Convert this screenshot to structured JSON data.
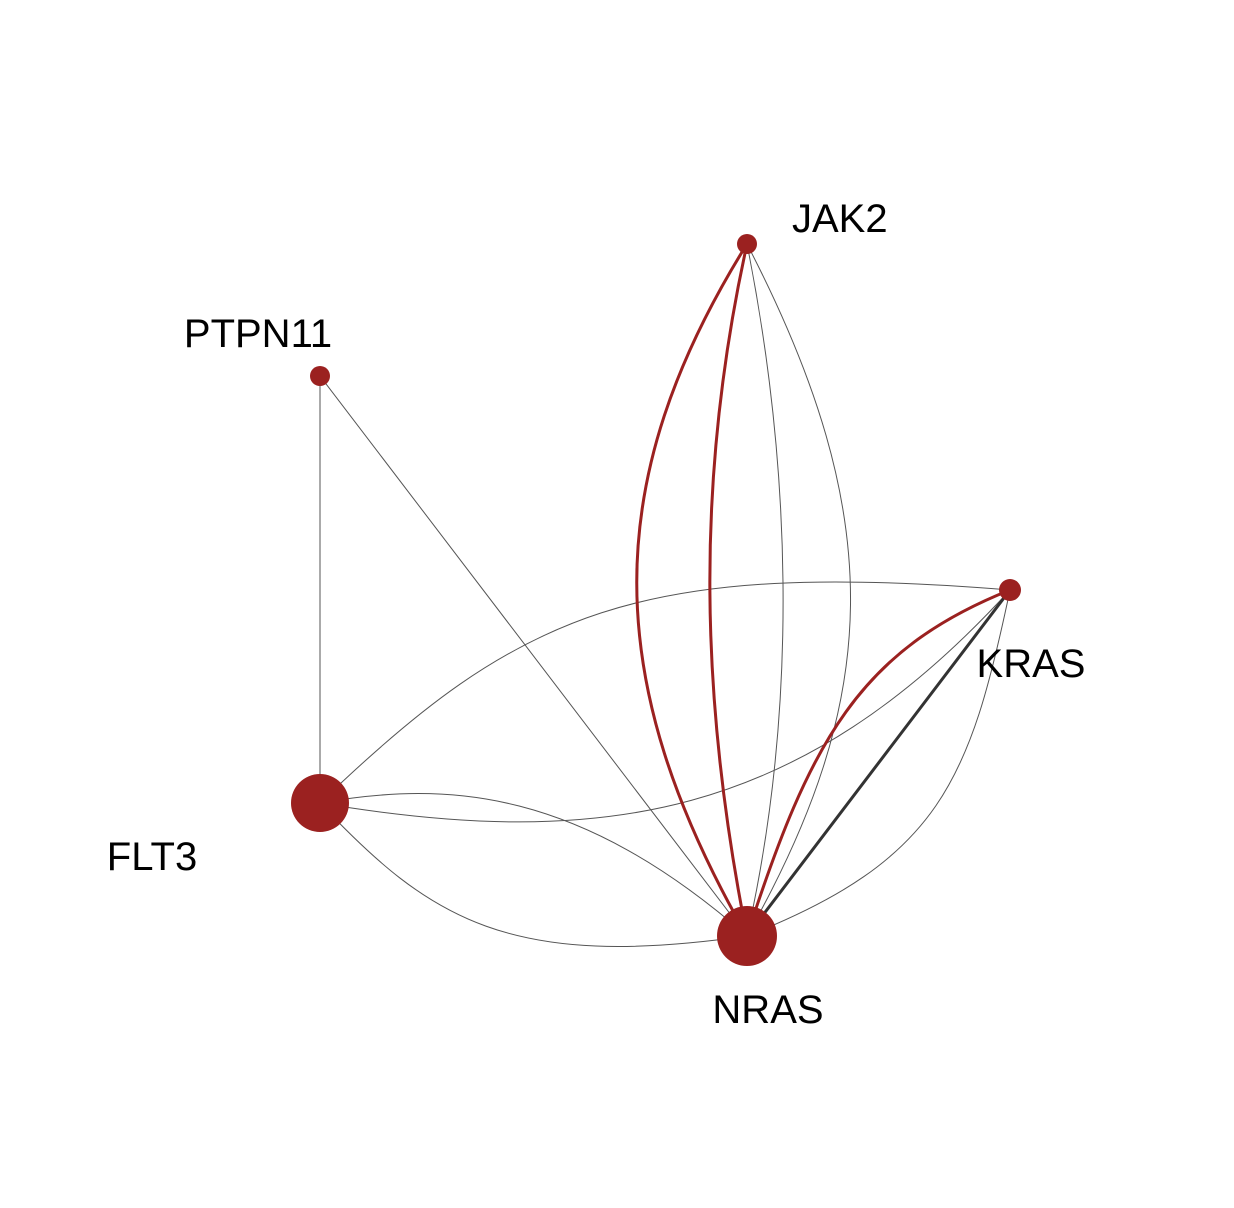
{
  "diagram": {
    "type": "network-graph",
    "colors": {
      "node": "#9b2120",
      "edge_highlight": "#9b2120",
      "edge_thin": "#555555",
      "edge_strong": "#333333",
      "label": "#000000"
    },
    "nodes": [
      {
        "id": "JAK2",
        "label": "JAK2",
        "size": "small"
      },
      {
        "id": "PTPN11",
        "label": "PTPN11",
        "size": "small"
      },
      {
        "id": "KRAS",
        "label": "KRAS",
        "size": "small"
      },
      {
        "id": "FLT3",
        "label": "FLT3",
        "size": "large"
      },
      {
        "id": "NRAS",
        "label": "NRAS",
        "size": "large"
      }
    ],
    "edges": [
      {
        "source": "JAK2",
        "target": "NRAS",
        "style": "highlight"
      },
      {
        "source": "JAK2",
        "target": "NRAS",
        "style": "highlight"
      },
      {
        "source": "JAK2",
        "target": "NRAS",
        "style": "thin"
      },
      {
        "source": "JAK2",
        "target": "NRAS",
        "style": "thin"
      },
      {
        "source": "PTPN11",
        "target": "FLT3",
        "style": "thin"
      },
      {
        "source": "PTPN11",
        "target": "NRAS",
        "style": "thin"
      },
      {
        "source": "KRAS",
        "target": "NRAS",
        "style": "highlight"
      },
      {
        "source": "KRAS",
        "target": "NRAS",
        "style": "strong"
      },
      {
        "source": "KRAS",
        "target": "NRAS",
        "style": "thin"
      },
      {
        "source": "KRAS",
        "target": "NRAS",
        "style": "thin"
      },
      {
        "source": "FLT3",
        "target": "KRAS",
        "style": "thin"
      },
      {
        "source": "FLT3",
        "target": "KRAS",
        "style": "thin"
      },
      {
        "source": "FLT3",
        "target": "NRAS",
        "style": "thin"
      },
      {
        "source": "FLT3",
        "target": "NRAS",
        "style": "thin"
      }
    ]
  }
}
